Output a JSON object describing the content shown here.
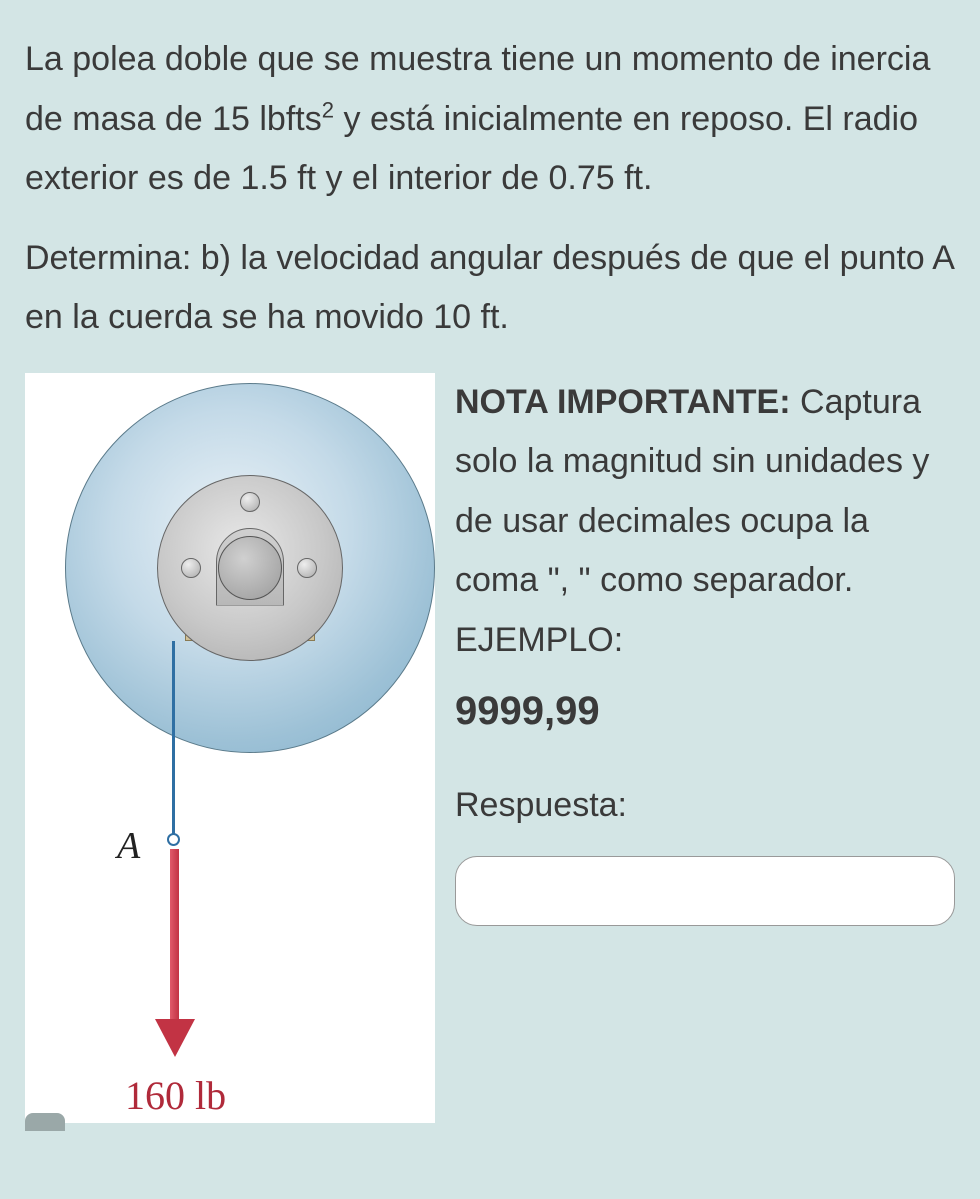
{
  "problem": {
    "paragraph_html": "La polea doble que se muestra tiene un momento de inercia de masa de 15 lbfts<sup>2</sup> y está inicialmente en reposo. El radio exterior es de 1.5 ft y el interior de 0.75 ft.",
    "question": "Determina: b) la velocidad angular después de que el punto A en la cuerda se ha movido 10 ft."
  },
  "figure": {
    "point_label": "A",
    "force_label": "160 lb",
    "colors": {
      "outer_pulley": "#9dc1d6",
      "inner_pulley": "#c8c8c8",
      "cord": "#2f6fa3",
      "arrow": "#c23344",
      "base": "#cfbf97",
      "force_text": "#b02a3a"
    }
  },
  "note": {
    "title": "NOTA IMPORTANTE:",
    "body": "Captura solo la magnitud sin unidades y de usar decimales ocupa la coma \", \" como separador.",
    "example_label": "EJEMPLO:",
    "example_value": "9999,99"
  },
  "answer": {
    "label": "Respuesta:",
    "value": ""
  }
}
